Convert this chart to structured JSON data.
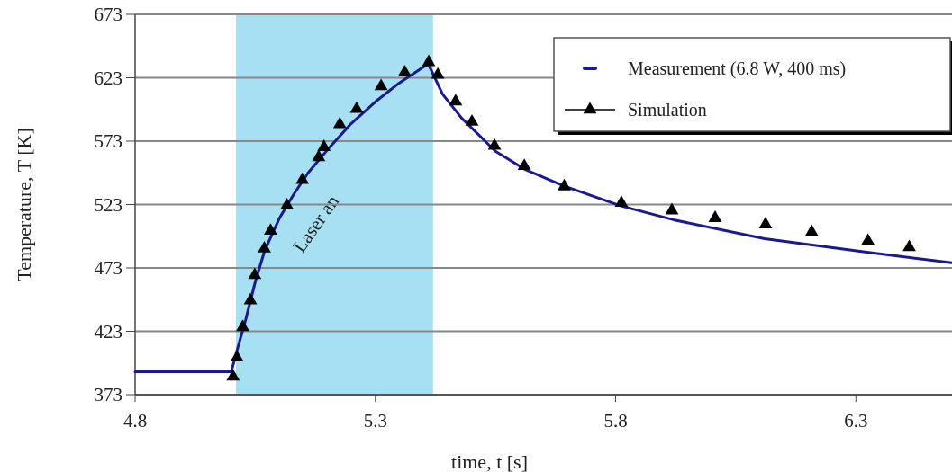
{
  "chart_data": {
    "type": "line",
    "xlabel": "time, t [s]",
    "ylabel": "Temperature, T [K]",
    "xlim": [
      4.8,
      6.5
    ],
    "xticks": [
      4.8,
      5.3,
      5.8,
      6.3
    ],
    "ylim": [
      373,
      673
    ],
    "yticks": [
      373,
      423,
      473,
      523,
      573,
      623,
      673
    ],
    "grid": "y",
    "legend": "top right",
    "bands": [
      {
        "axis": "x",
        "from": 5.01,
        "to": 5.42,
        "label": "Laser an",
        "color": "#a6e0f2"
      }
    ],
    "series": [
      {
        "name": "Measurement (6.8 W, 400 ms)",
        "color": "#1a1a8c",
        "marker": "none",
        "x": [
          4.8,
          4.9,
          5.0,
          5.01,
          5.03,
          5.05,
          5.07,
          5.1,
          5.13,
          5.16,
          5.2,
          5.25,
          5.3,
          5.35,
          5.41,
          5.44,
          5.48,
          5.55,
          5.61,
          5.69,
          5.81,
          5.92,
          6.11,
          6.33,
          6.5
        ],
        "values": [
          391,
          391,
          391,
          405,
          432,
          462,
          487,
          512,
          531,
          548,
          566,
          587,
          604,
          619,
          634,
          610,
          591,
          565,
          551,
          538,
          522,
          511,
          496,
          485,
          477
        ]
      },
      {
        "name": "Simulation",
        "type": "scatter",
        "color": "#000000",
        "marker": "triangle",
        "x": [
          5.004,
          5.012,
          5.024,
          5.04,
          5.049,
          5.069,
          5.082,
          5.116,
          5.148,
          5.182,
          5.193,
          5.226,
          5.261,
          5.312,
          5.361,
          5.411,
          5.43,
          5.467,
          5.501,
          5.548,
          5.61,
          5.693,
          5.812,
          5.917,
          6.007,
          6.112,
          6.208,
          6.325,
          6.411
        ],
        "values": [
          388,
          403,
          427,
          448,
          468,
          489,
          503,
          523,
          543,
          561,
          569,
          587,
          599,
          617,
          628,
          636,
          626,
          605,
          589,
          570,
          554,
          538,
          525,
          519,
          513,
          508,
          502,
          495,
          490
        ]
      }
    ]
  }
}
